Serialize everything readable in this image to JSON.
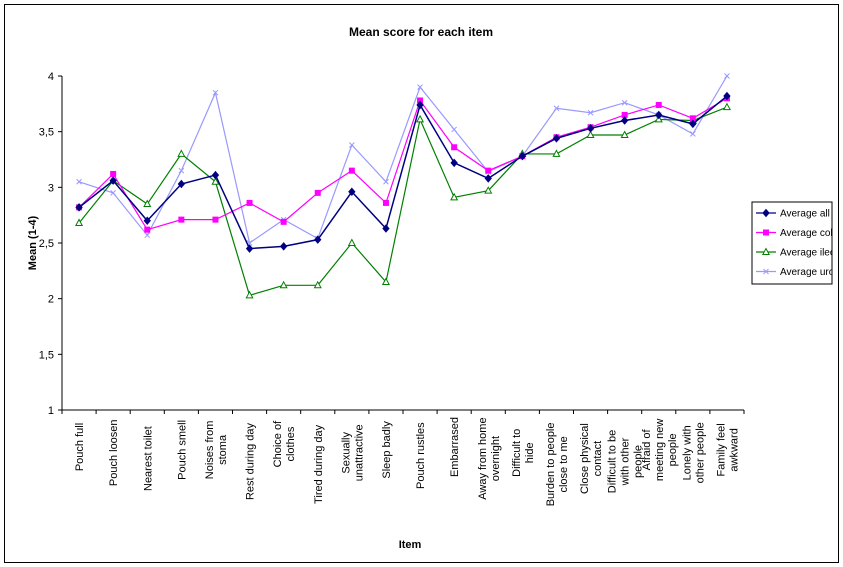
{
  "chart_data": {
    "type": "line",
    "title": "Mean score for each item",
    "xlabel": "Item",
    "ylabel": "Mean (1-4)",
    "ylim": [
      1,
      4
    ],
    "yticks": [
      "1",
      "1,5",
      "2",
      "2,5",
      "3",
      "3,5",
      "4"
    ],
    "grid": false,
    "legend_position": "right",
    "categories": [
      "Pouch full",
      "Pouch loosen",
      "Nearest toilet",
      "Pouch smell",
      "Noises from stoma",
      "Rest during day",
      "Choice of clothes",
      "Tired during day",
      "Sexually unattractive",
      "Sleep badly",
      "Pouch rustles",
      "Embarrased",
      "Away from home overnight",
      "Difficult to hide",
      "Burden to people close to me",
      "Close physical contact",
      "Difficult to be with other people",
      "Afraid of meeting new people",
      "Lonely with other people",
      "Family feel awkward"
    ],
    "series": [
      {
        "name": "Average all",
        "color": "#000080",
        "marker": "diamond",
        "values": [
          2.82,
          3.06,
          2.7,
          3.03,
          3.11,
          2.45,
          2.47,
          2.53,
          2.96,
          2.63,
          3.74,
          3.22,
          3.08,
          3.28,
          3.44,
          3.53,
          3.6,
          3.65,
          3.57,
          3.82
        ]
      },
      {
        "name": "Average colo",
        "color": "#ff00ff",
        "marker": "square",
        "values": [
          2.82,
          3.12,
          2.62,
          2.71,
          2.71,
          2.86,
          2.69,
          2.95,
          3.15,
          2.86,
          3.78,
          3.36,
          3.15,
          3.28,
          3.45,
          3.54,
          3.65,
          3.74,
          3.62,
          3.8
        ]
      },
      {
        "name": "Average ileo",
        "color": "#008000",
        "marker": "triangle",
        "values": [
          2.68,
          3.06,
          2.85,
          3.3,
          3.05,
          2.03,
          2.12,
          2.12,
          2.5,
          2.15,
          3.61,
          2.91,
          2.97,
          3.3,
          3.3,
          3.47,
          3.47,
          3.61,
          3.6,
          3.72
        ]
      },
      {
        "name": "Average uro",
        "color": "#9999ff",
        "marker": "x",
        "values": [
          3.05,
          2.95,
          2.57,
          3.15,
          3.85,
          2.5,
          2.71,
          2.54,
          3.38,
          3.05,
          3.9,
          3.52,
          3.14,
          3.28,
          3.71,
          3.67,
          3.76,
          3.65,
          3.48,
          4.0
        ]
      }
    ]
  }
}
